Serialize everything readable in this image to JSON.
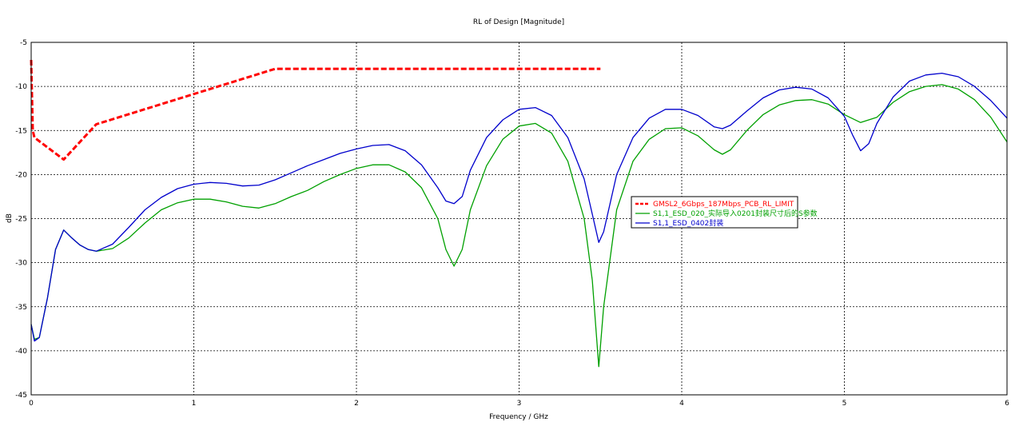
{
  "chart_data": {
    "type": "line",
    "title": "RL of Design [Magnitude]",
    "xlabel": "Frequency / GHz",
    "ylabel": "dB",
    "xlim": [
      0,
      6
    ],
    "ylim": [
      -45,
      -5
    ],
    "xticks": [
      "0",
      "1",
      "2",
      "3",
      "4",
      "5",
      "6"
    ],
    "yticks": [
      "-5",
      "-10",
      "-15",
      "-20",
      "-25",
      "-30",
      "-35",
      "-40",
      "-45"
    ],
    "grid": true,
    "legend_position": "center-right",
    "series": [
      {
        "name": "GMSL2_6Gbps_187Mbps_PCB_RL_LIMIT",
        "color": "#ff0000",
        "style": "dashed",
        "points": [
          [
            0.0,
            -7.0
          ],
          [
            0.01,
            -15.0
          ],
          [
            0.02,
            -15.8
          ],
          [
            0.2,
            -18.3
          ],
          [
            0.4,
            -14.3
          ],
          [
            1.5,
            -8.0
          ],
          [
            3.5,
            -8.0
          ]
        ]
      },
      {
        "name": "S1,1_ESD_020_实际导入0201封装尺寸后的S参数",
        "color": "#00a000",
        "style": "solid",
        "points": [
          [
            0.0,
            -37.0
          ],
          [
            0.02,
            -38.7
          ],
          [
            0.05,
            -38.5
          ],
          [
            0.1,
            -34.0
          ],
          [
            0.15,
            -28.5
          ],
          [
            0.2,
            -26.3
          ],
          [
            0.25,
            -27.2
          ],
          [
            0.3,
            -28.0
          ],
          [
            0.35,
            -28.5
          ],
          [
            0.4,
            -28.7
          ],
          [
            0.5,
            -28.4
          ],
          [
            0.6,
            -27.2
          ],
          [
            0.7,
            -25.5
          ],
          [
            0.8,
            -24.0
          ],
          [
            0.9,
            -23.2
          ],
          [
            1.0,
            -22.8
          ],
          [
            1.1,
            -22.8
          ],
          [
            1.2,
            -23.1
          ],
          [
            1.3,
            -23.6
          ],
          [
            1.4,
            -23.8
          ],
          [
            1.5,
            -23.3
          ],
          [
            1.6,
            -22.5
          ],
          [
            1.7,
            -21.8
          ],
          [
            1.8,
            -20.8
          ],
          [
            1.9,
            -20.0
          ],
          [
            2.0,
            -19.3
          ],
          [
            2.1,
            -18.9
          ],
          [
            2.2,
            -18.9
          ],
          [
            2.3,
            -19.7
          ],
          [
            2.4,
            -21.5
          ],
          [
            2.5,
            -25.0
          ],
          [
            2.55,
            -28.5
          ],
          [
            2.6,
            -30.4
          ],
          [
            2.65,
            -28.5
          ],
          [
            2.7,
            -24.0
          ],
          [
            2.8,
            -19.0
          ],
          [
            2.9,
            -16.0
          ],
          [
            3.0,
            -14.5
          ],
          [
            3.1,
            -14.2
          ],
          [
            3.2,
            -15.3
          ],
          [
            3.3,
            -18.5
          ],
          [
            3.4,
            -25.0
          ],
          [
            3.45,
            -32.0
          ],
          [
            3.49,
            -41.8
          ],
          [
            3.52,
            -35.0
          ],
          [
            3.6,
            -24.0
          ],
          [
            3.7,
            -18.5
          ],
          [
            3.8,
            -16.0
          ],
          [
            3.9,
            -14.8
          ],
          [
            4.0,
            -14.7
          ],
          [
            4.1,
            -15.6
          ],
          [
            4.2,
            -17.2
          ],
          [
            4.25,
            -17.7
          ],
          [
            4.3,
            -17.2
          ],
          [
            4.4,
            -15.0
          ],
          [
            4.5,
            -13.2
          ],
          [
            4.6,
            -12.1
          ],
          [
            4.7,
            -11.6
          ],
          [
            4.8,
            -11.5
          ],
          [
            4.9,
            -12.0
          ],
          [
            5.0,
            -13.2
          ],
          [
            5.1,
            -14.1
          ],
          [
            5.2,
            -13.5
          ],
          [
            5.3,
            -11.8
          ],
          [
            5.4,
            -10.6
          ],
          [
            5.5,
            -10.0
          ],
          [
            5.6,
            -9.8
          ],
          [
            5.7,
            -10.3
          ],
          [
            5.8,
            -11.5
          ],
          [
            5.9,
            -13.5
          ],
          [
            6.0,
            -16.3
          ]
        ]
      },
      {
        "name": "S1,1_ESD_0402封装",
        "color": "#0000cc",
        "style": "solid",
        "points": [
          [
            0.0,
            -37.0
          ],
          [
            0.02,
            -38.9
          ],
          [
            0.05,
            -38.5
          ],
          [
            0.1,
            -34.0
          ],
          [
            0.15,
            -28.5
          ],
          [
            0.2,
            -26.3
          ],
          [
            0.25,
            -27.2
          ],
          [
            0.3,
            -28.0
          ],
          [
            0.35,
            -28.5
          ],
          [
            0.4,
            -28.7
          ],
          [
            0.5,
            -27.9
          ],
          [
            0.6,
            -26.0
          ],
          [
            0.7,
            -24.0
          ],
          [
            0.8,
            -22.6
          ],
          [
            0.9,
            -21.6
          ],
          [
            1.0,
            -21.1
          ],
          [
            1.1,
            -20.9
          ],
          [
            1.2,
            -21.0
          ],
          [
            1.3,
            -21.3
          ],
          [
            1.4,
            -21.2
          ],
          [
            1.5,
            -20.6
          ],
          [
            1.6,
            -19.8
          ],
          [
            1.7,
            -19.0
          ],
          [
            1.8,
            -18.3
          ],
          [
            1.9,
            -17.6
          ],
          [
            2.0,
            -17.1
          ],
          [
            2.1,
            -16.7
          ],
          [
            2.2,
            -16.6
          ],
          [
            2.3,
            -17.3
          ],
          [
            2.4,
            -18.9
          ],
          [
            2.5,
            -21.5
          ],
          [
            2.55,
            -23.0
          ],
          [
            2.6,
            -23.3
          ],
          [
            2.65,
            -22.5
          ],
          [
            2.7,
            -19.5
          ],
          [
            2.8,
            -15.8
          ],
          [
            2.9,
            -13.8
          ],
          [
            3.0,
            -12.6
          ],
          [
            3.1,
            -12.4
          ],
          [
            3.2,
            -13.3
          ],
          [
            3.3,
            -15.8
          ],
          [
            3.4,
            -20.5
          ],
          [
            3.45,
            -24.5
          ],
          [
            3.49,
            -27.7
          ],
          [
            3.52,
            -26.5
          ],
          [
            3.6,
            -20.0
          ],
          [
            3.7,
            -15.8
          ],
          [
            3.8,
            -13.6
          ],
          [
            3.9,
            -12.6
          ],
          [
            4.0,
            -12.6
          ],
          [
            4.1,
            -13.3
          ],
          [
            4.2,
            -14.6
          ],
          [
            4.25,
            -14.8
          ],
          [
            4.3,
            -14.4
          ],
          [
            4.4,
            -12.8
          ],
          [
            4.5,
            -11.3
          ],
          [
            4.6,
            -10.4
          ],
          [
            4.7,
            -10.1
          ],
          [
            4.8,
            -10.3
          ],
          [
            4.9,
            -11.3
          ],
          [
            5.0,
            -13.4
          ],
          [
            5.05,
            -15.5
          ],
          [
            5.1,
            -17.3
          ],
          [
            5.15,
            -16.5
          ],
          [
            5.2,
            -14.2
          ],
          [
            5.3,
            -11.2
          ],
          [
            5.4,
            -9.4
          ],
          [
            5.5,
            -8.7
          ],
          [
            5.6,
            -8.5
          ],
          [
            5.7,
            -8.9
          ],
          [
            5.8,
            -10.0
          ],
          [
            5.9,
            -11.6
          ],
          [
            6.0,
            -13.6
          ]
        ]
      }
    ]
  }
}
